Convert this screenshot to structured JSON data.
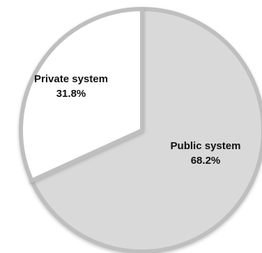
{
  "chart_data": {
    "type": "pie",
    "title": "",
    "slices": [
      {
        "label": "Public system",
        "value_text": "68.2%",
        "value": 68.2,
        "color": "#d9d9d9"
      },
      {
        "label": "Private system",
        "value_text": "31.8%",
        "value": 31.8,
        "color": "#ffffff"
      }
    ],
    "legend": "none",
    "edge_color": "#bfbfbf"
  }
}
